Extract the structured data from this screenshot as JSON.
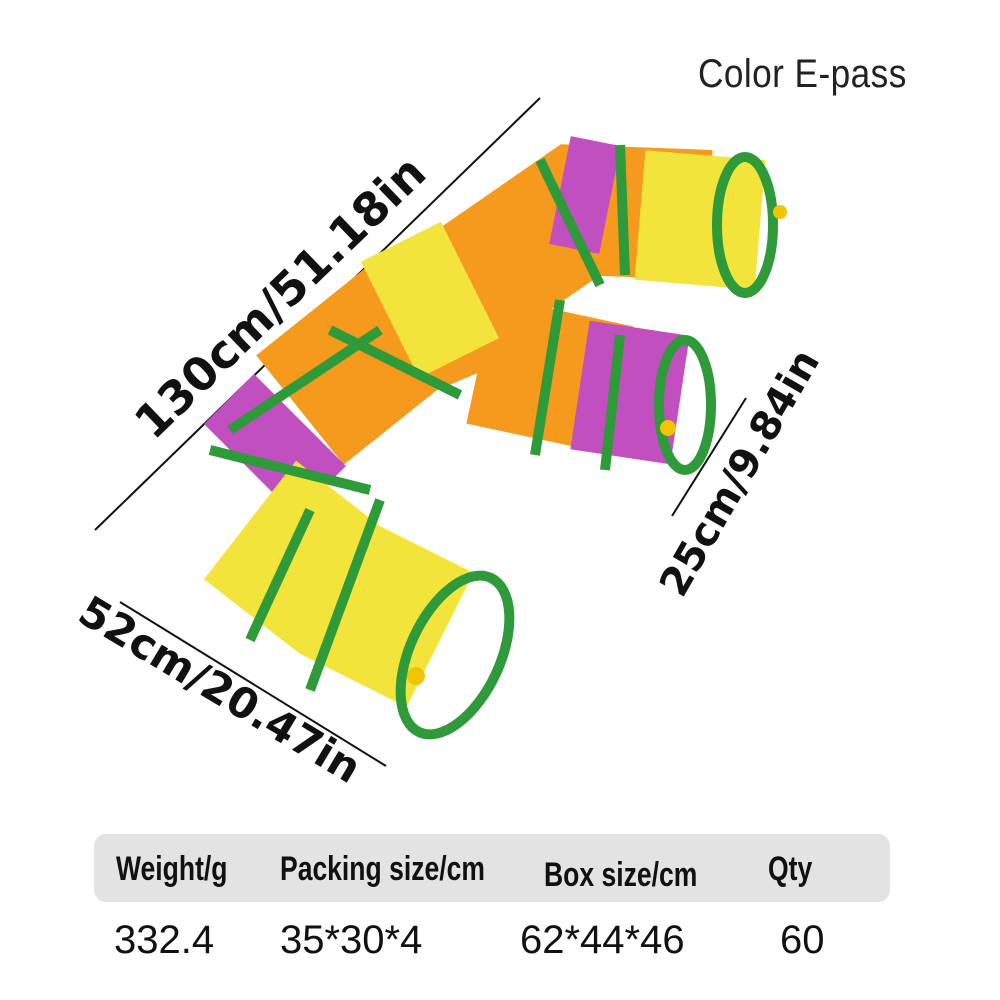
{
  "title": "Color E-pass",
  "dimensions": {
    "length": "130cm/51.18in",
    "diameter": "25cm/9.84in",
    "width": "52cm/20.47in"
  },
  "colors": {
    "yellow": "#f2e43a",
    "orange": "#f59a1c",
    "purple": "#c24fc0",
    "green": "#2e9a3a"
  },
  "specs": {
    "headers": [
      "Weight/g",
      "Packing size/cm",
      "Box size/cm",
      "Qty"
    ],
    "values": [
      "332.4",
      "35*30*4",
      "62*44*46",
      "60"
    ]
  }
}
